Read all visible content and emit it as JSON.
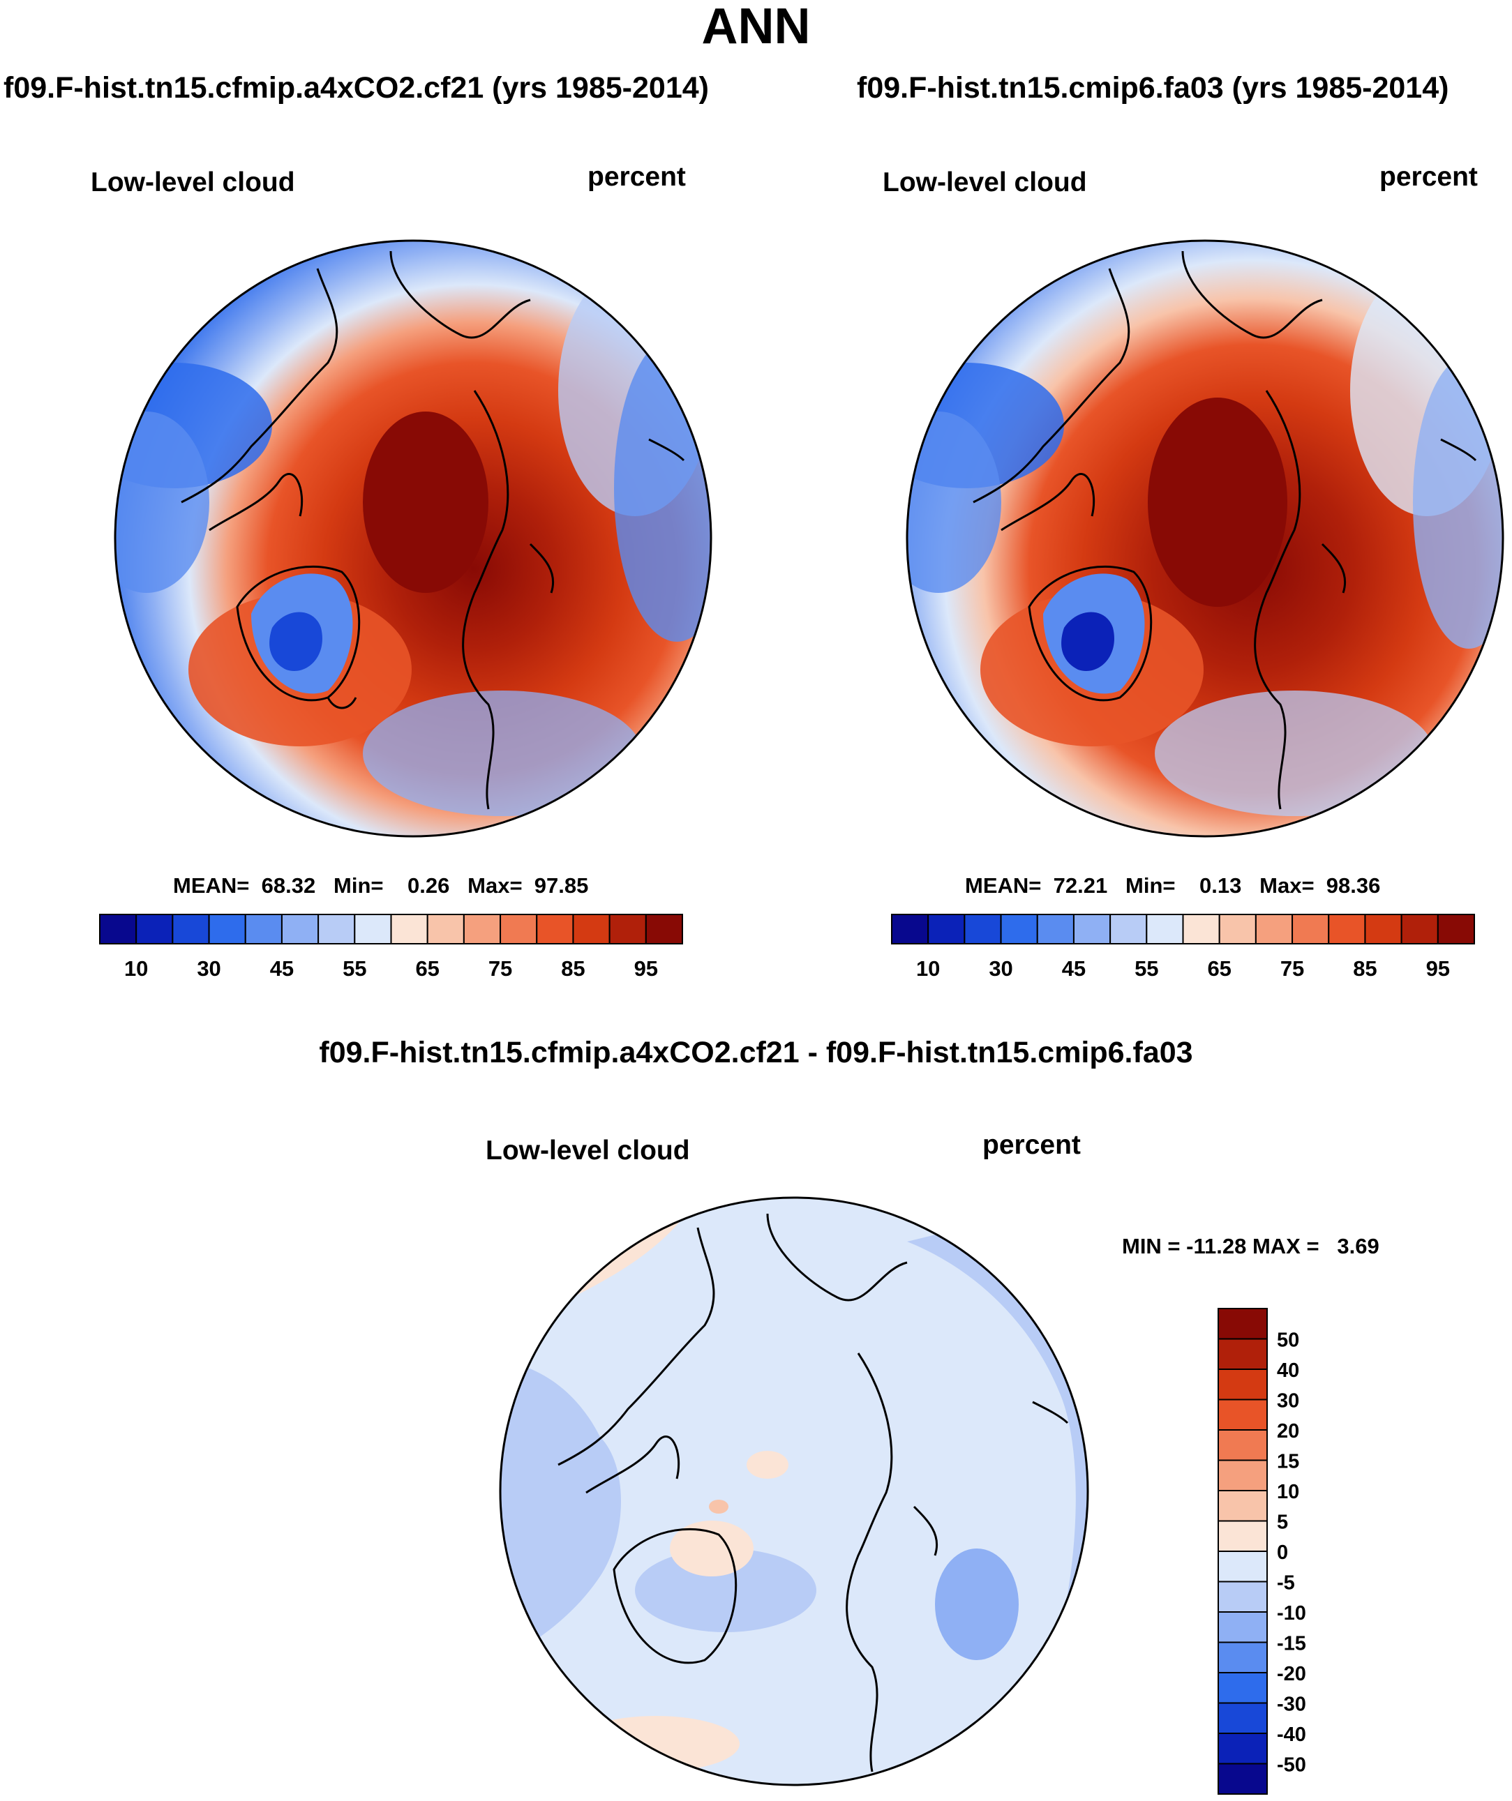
{
  "title": "ANN",
  "panels": [
    {
      "case": "f09.F-hist.tn15.cfmip.a4xCO2.cf21 (yrs 1985-2014)",
      "variable": "Low-level cloud",
      "units": "percent",
      "stats": {
        "mean": "68.32",
        "min": "0.26",
        "max": "97.85"
      }
    },
    {
      "case": "f09.F-hist.tn15.cmip6.fa03 (yrs 1985-2014)",
      "variable": "Low-level cloud",
      "units": "percent",
      "stats": {
        "mean": "72.21",
        "min": "0.13",
        "max": "98.36"
      }
    }
  ],
  "difference": {
    "title": "f09.F-hist.tn15.cfmip.a4xCO2.cf21 - f09.F-hist.tn15.cmip6.fa03",
    "variable": "Low-level cloud",
    "units": "percent",
    "minmax_label": "MIN = -11.28 MAX =   3.69"
  },
  "chart_data": [
    {
      "type": "heatmap",
      "projection": "north polar stereographic",
      "title": "Low-level cloud",
      "units": "percent",
      "mean": 68.32,
      "min": 0.26,
      "max": 97.85,
      "colorbar": {
        "orientation": "horizontal",
        "levels": [
          5,
          10,
          20,
          30,
          40,
          45,
          50,
          55,
          60,
          65,
          70,
          75,
          80,
          85,
          90,
          95
        ],
        "tick_labels": [
          "10",
          "30",
          "45",
          "55",
          "65",
          "75",
          "85",
          "95"
        ],
        "colors": [
          "#08088e",
          "#0b22b8",
          "#1848d8",
          "#2e6cec",
          "#5a8cf0",
          "#8fb0f4",
          "#b8ccf6",
          "#dce8fa",
          "#fbe4d6",
          "#f8c4aa",
          "#f5a07e",
          "#f07a52",
          "#e85428",
          "#d43a12",
          "#b0200a",
          "#880a05"
        ]
      }
    },
    {
      "type": "heatmap",
      "projection": "north polar stereographic",
      "title": "Low-level cloud",
      "units": "percent",
      "mean": 72.21,
      "min": 0.13,
      "max": 98.36,
      "colorbar": {
        "orientation": "horizontal",
        "levels": [
          5,
          10,
          20,
          30,
          40,
          45,
          50,
          55,
          60,
          65,
          70,
          75,
          80,
          85,
          90,
          95
        ],
        "tick_labels": [
          "10",
          "30",
          "45",
          "55",
          "65",
          "75",
          "85",
          "95"
        ],
        "colors": [
          "#08088e",
          "#0b22b8",
          "#1848d8",
          "#2e6cec",
          "#5a8cf0",
          "#8fb0f4",
          "#b8ccf6",
          "#dce8fa",
          "#fbe4d6",
          "#f8c4aa",
          "#f5a07e",
          "#f07a52",
          "#e85428",
          "#d43a12",
          "#b0200a",
          "#880a05"
        ]
      }
    },
    {
      "type": "heatmap",
      "projection": "north polar stereographic",
      "title": "Low-level cloud",
      "units": "percent",
      "min": -11.28,
      "max": 3.69,
      "colorbar": {
        "orientation": "vertical",
        "tick_labels": [
          "50",
          "40",
          "30",
          "20",
          "15",
          "10",
          "5",
          "0",
          "-5",
          "-10",
          "-15",
          "-20",
          "-30",
          "-40",
          "-50"
        ],
        "colors": [
          "#880a05",
          "#b0200a",
          "#d43a12",
          "#e85428",
          "#f07a52",
          "#f5a07e",
          "#f8c4aa",
          "#fbe4d6",
          "#dce8fa",
          "#b8ccf6",
          "#8fb0f4",
          "#5a8cf0",
          "#2e6cec",
          "#1848d8",
          "#0b22b8",
          "#08088e"
        ]
      }
    }
  ]
}
